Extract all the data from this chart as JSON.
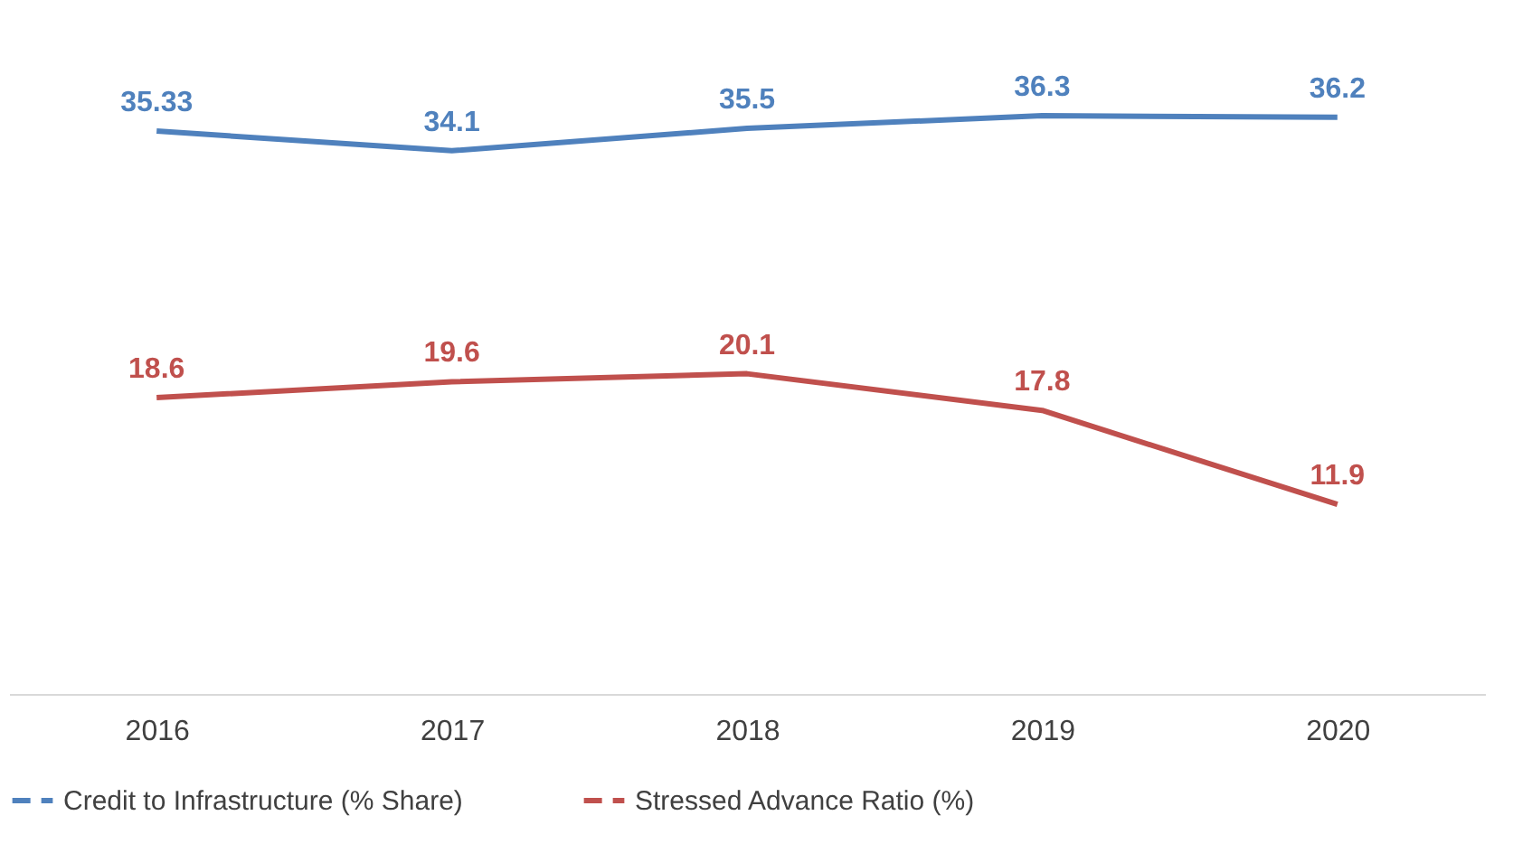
{
  "chart_data": {
    "type": "line",
    "categories": [
      "2016",
      "2017",
      "2018",
      "2019",
      "2020"
    ],
    "series": [
      {
        "name": "Credit to Infrastructure (% Share)",
        "color": "#4f81bd",
        "values": [
          35.33,
          34.1,
          35.5,
          36.3,
          36.2
        ]
      },
      {
        "name": "Stressed Advance Ratio (%)",
        "color": "#c0504d",
        "values": [
          18.6,
          19.6,
          20.1,
          17.8,
          11.9
        ]
      }
    ],
    "tick_labels": "x",
    "data_labels": true,
    "legend": "bottom",
    "grid": false,
    "marker": "none",
    "line_style": "solid"
  }
}
